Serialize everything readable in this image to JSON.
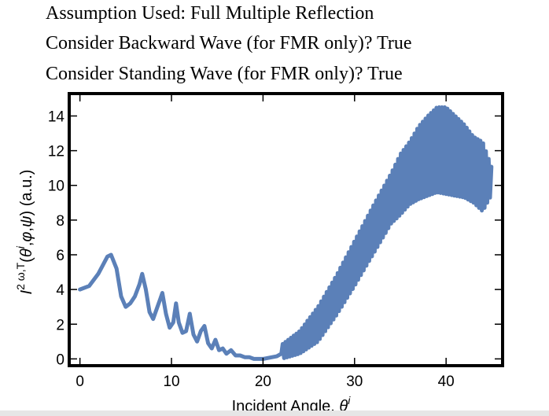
{
  "header": {
    "line1": "Assumption Used: Full Multiple Reflection",
    "line2": "Consider Backward Wave (for FMR only)? True",
    "line3": "Consider Standing Wave (for FMR only)? True"
  },
  "chart_data": {
    "type": "line",
    "title": "",
    "xlabel": "Incident Angle, θ^i",
    "ylabel": "I^{2ω,T}(θ^i,φ,ψ) (a.u.)",
    "xlim": [
      -1,
      46
    ],
    "ylim": [
      -0.3,
      15.2
    ],
    "x_ticks": [
      0,
      10,
      20,
      30,
      40
    ],
    "y_ticks": [
      0,
      2,
      4,
      6,
      8,
      10,
      12,
      14
    ],
    "grid": false,
    "legend": "none",
    "series_color": "#5b80b8",
    "frame_color": "#000000",
    "series": [
      {
        "envelope_note_x": [
          0,
          1.0,
          2.0,
          3.0,
          3.4,
          4.0,
          4.5,
          5.0,
          5.5,
          6.0,
          6.5,
          6.8,
          7.2,
          7.6,
          8.0,
          8.4,
          8.8,
          9.0,
          9.4,
          9.8,
          10.2,
          10.5,
          10.8,
          11.2,
          11.6,
          12.0,
          12.4,
          12.8,
          13.2,
          13.6,
          14.0,
          14.4,
          14.8,
          15.2,
          15.6,
          16.0,
          16.5,
          17.0,
          17.5,
          18.0,
          18.5,
          19.0,
          19.5,
          20.0,
          20.5,
          21.0,
          21.5,
          22.0
        ],
        "envelope_note_y": [
          4.0,
          4.2,
          4.9,
          5.9,
          6.0,
          5.2,
          3.6,
          3.0,
          3.2,
          3.6,
          4.3,
          4.9,
          4.0,
          2.7,
          2.3,
          2.9,
          3.5,
          3.8,
          2.6,
          1.8,
          2.1,
          3.2,
          2.1,
          1.5,
          1.6,
          2.6,
          1.4,
          1.0,
          1.6,
          1.9,
          0.9,
          0.6,
          1.1,
          0.5,
          0.6,
          0.3,
          0.5,
          0.2,
          0.2,
          0.1,
          0.1,
          0.0,
          0.0,
          0.0,
          0.05,
          0.1,
          0.15,
          0.3
        ],
        "upper_x": [
          22,
          24,
          26,
          28,
          30,
          32,
          34,
          35,
          36,
          37,
          38,
          39,
          40,
          41,
          42,
          43,
          44,
          45
        ],
        "upper_y": [
          0.8,
          1.6,
          3.0,
          4.8,
          6.8,
          8.8,
          10.7,
          11.8,
          12.5,
          13.4,
          14.0,
          14.5,
          14.5,
          14.0,
          13.5,
          12.8,
          12.5,
          11.0
        ],
        "lower_x": [
          22,
          24,
          26,
          28,
          30,
          32,
          34,
          35,
          36,
          37,
          38,
          39,
          40,
          41,
          42,
          43,
          44,
          45
        ],
        "lower_y": [
          0.0,
          0.3,
          1.0,
          2.5,
          4.2,
          6.0,
          7.8,
          8.3,
          8.9,
          9.2,
          9.4,
          9.6,
          9.5,
          9.4,
          9.3,
          9.0,
          8.5,
          9.5
        ]
      }
    ]
  }
}
